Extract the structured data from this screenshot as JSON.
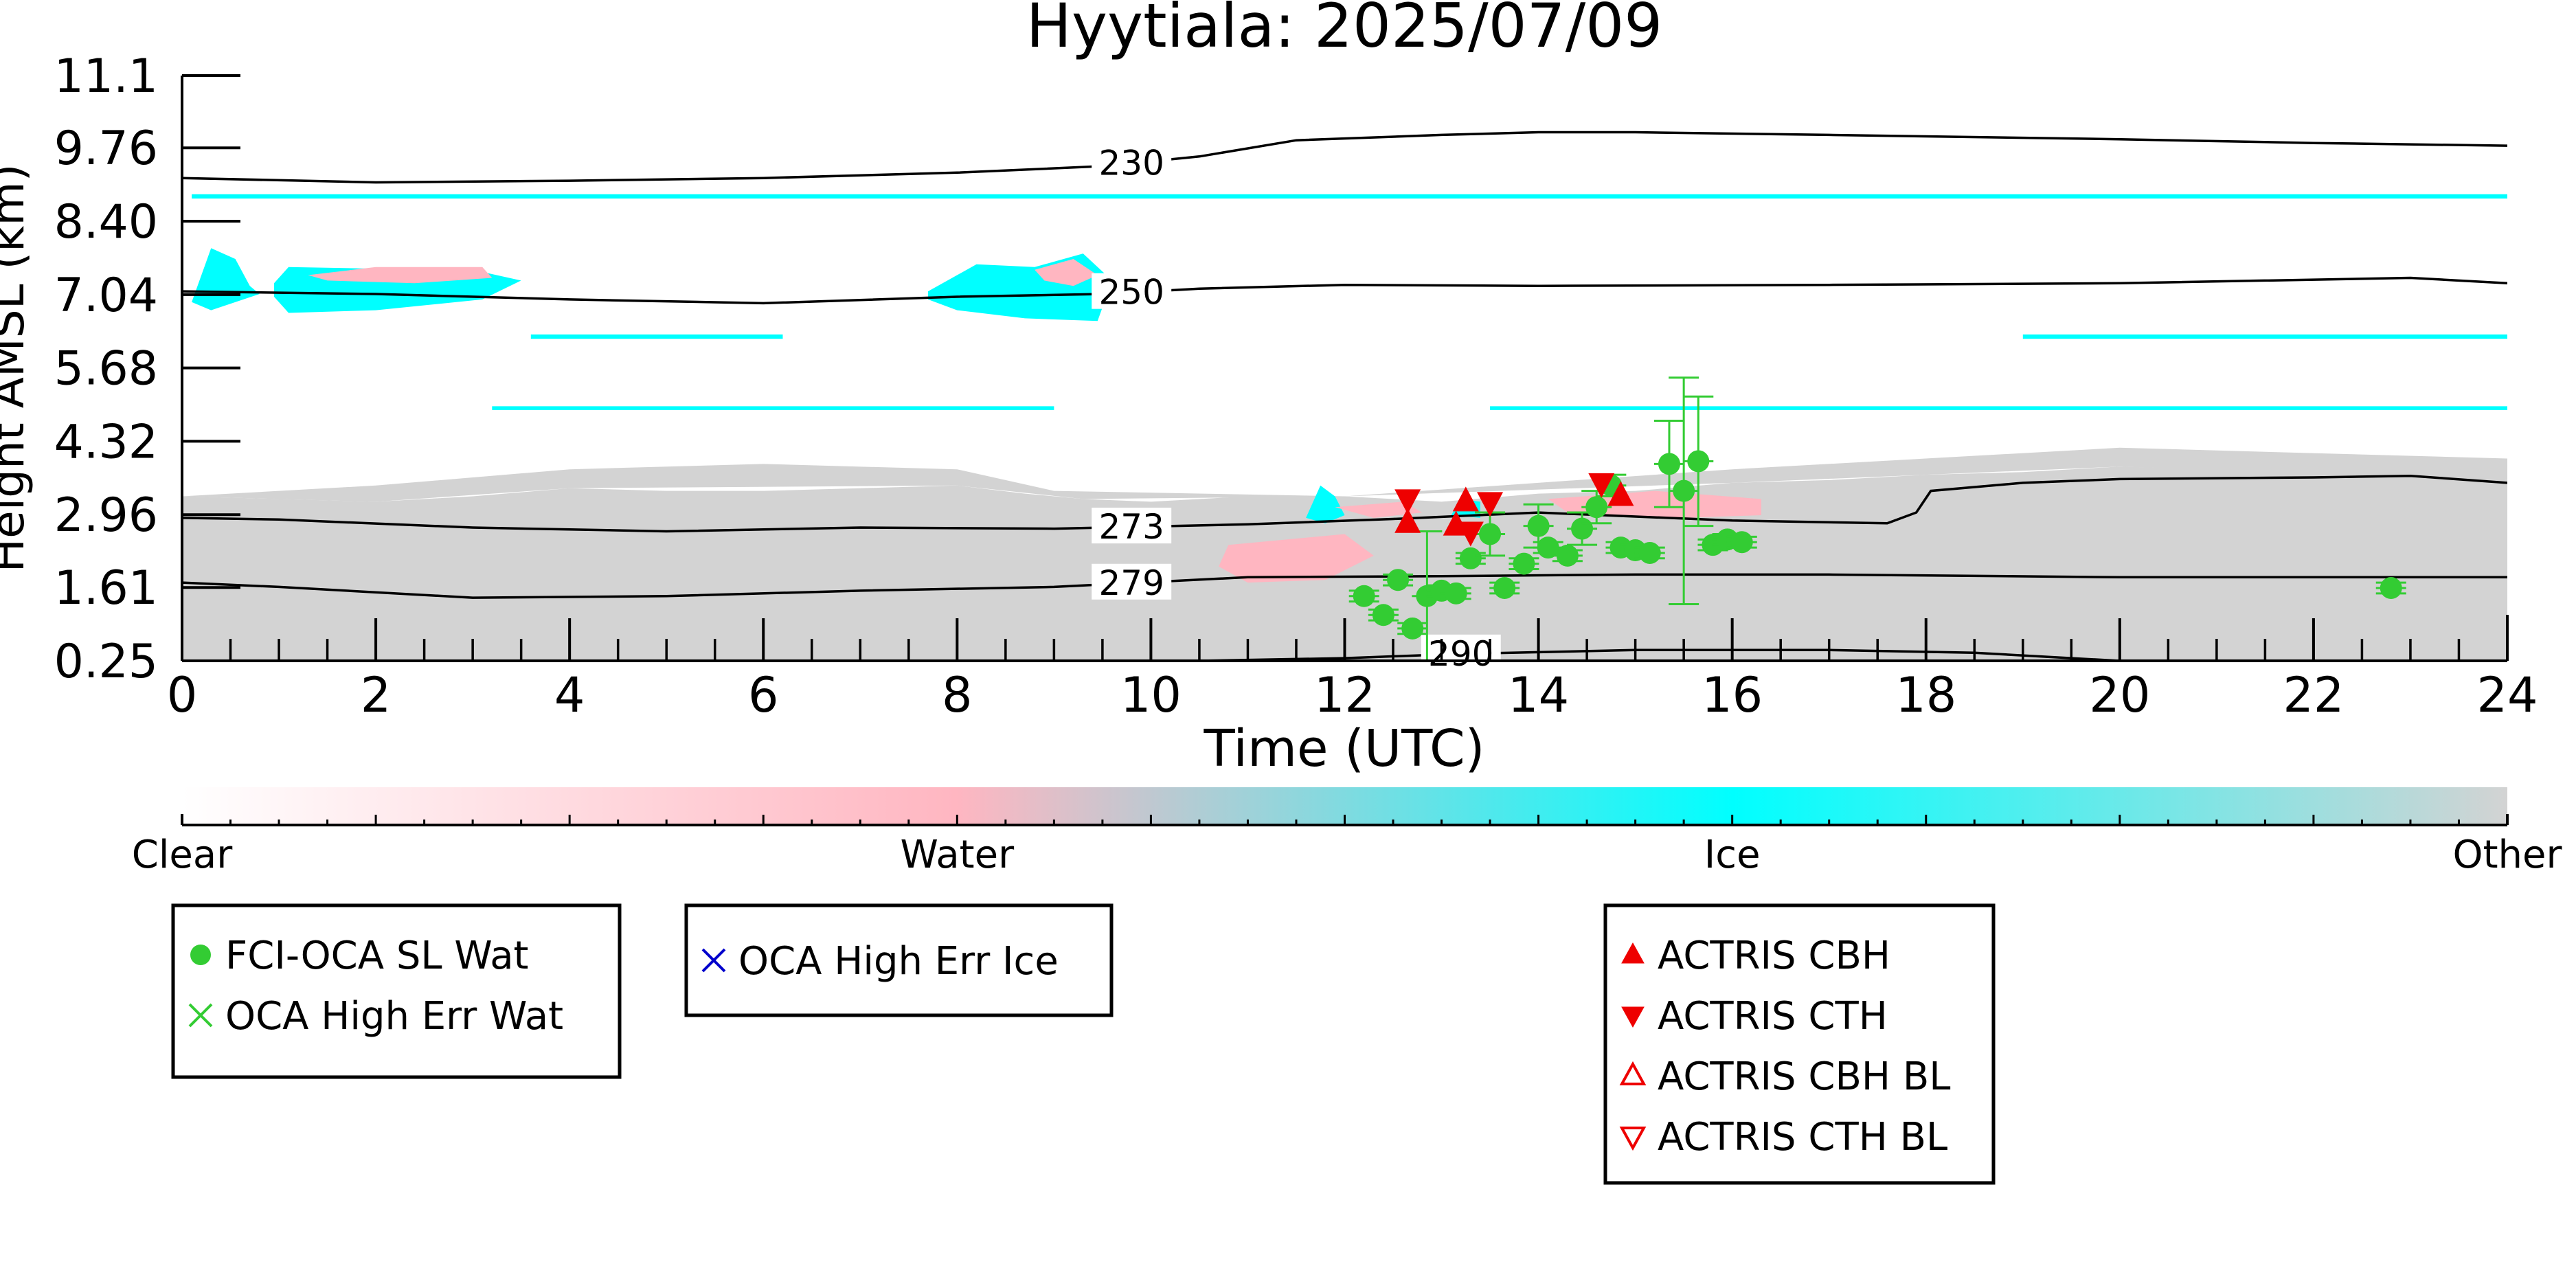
{
  "chart_data": {
    "type": "scatter",
    "title": "Hyytiala: 2025/07/09",
    "xlabel": "Time (UTC)",
    "ylabel": "Height AMSL (km)",
    "xlim": [
      0,
      24
    ],
    "ylim": [
      0.25,
      11.1
    ],
    "x_ticks": [
      "0",
      "2",
      "4",
      "6",
      "8",
      "10",
      "12",
      "14",
      "16",
      "18",
      "20",
      "22",
      "24"
    ],
    "y_ticks": [
      "0.25",
      "1.61",
      "2.96",
      "4.32",
      "5.68",
      "7.04",
      "8.40",
      "9.76",
      "11.1"
    ],
    "colorbar": {
      "labels": [
        "Clear",
        "Water",
        "Ice",
        "Other"
      ],
      "colors": [
        "#ffffff",
        "#ffb6c1",
        "#00ffff",
        "#d3d3d3"
      ]
    },
    "colors": {
      "oca_water": "#33cc33",
      "oca_ice": "#0000cc",
      "actris": "#ee0000",
      "contour": "#000000",
      "cloud_other": "#d3d3d3",
      "cloud_water": "#ffb6c1",
      "cloud_ice": "#00ffff"
    },
    "legends": [
      {
        "position": "lower-left",
        "entries": [
          {
            "label": "FCI-OCA SL Wat",
            "marker": "circle",
            "color": "#33cc33"
          },
          {
            "label": "OCA High Err Wat",
            "marker": "x",
            "color": "#33cc33"
          }
        ]
      },
      {
        "position": "lower-center-left",
        "entries": [
          {
            "label": "OCA High Err Ice",
            "marker": "x",
            "color": "#0000cc"
          }
        ]
      },
      {
        "position": "lower-right",
        "entries": [
          {
            "label": "ACTRIS CBH",
            "marker": "triangle-up",
            "color": "#ee0000"
          },
          {
            "label": "ACTRIS CTH",
            "marker": "triangle-down",
            "color": "#ee0000"
          },
          {
            "label": "ACTRIS CBH BL",
            "marker": "triangle-up-open",
            "color": "#ee0000"
          },
          {
            "label": "ACTRIS CTH BL",
            "marker": "triangle-down-open",
            "color": "#ee0000"
          }
        ]
      }
    ],
    "contours": [
      {
        "label": "230",
        "label_x": 9.8,
        "points": [
          [
            0,
            9.2
          ],
          [
            2,
            9.12
          ],
          [
            4,
            9.15
          ],
          [
            6,
            9.2
          ],
          [
            8,
            9.3
          ],
          [
            9.5,
            9.42
          ],
          [
            10.5,
            9.6
          ],
          [
            11.5,
            9.9
          ],
          [
            13,
            10.0
          ],
          [
            14,
            10.05
          ],
          [
            15,
            10.05
          ],
          [
            17,
            10.0
          ],
          [
            20,
            9.92
          ],
          [
            22,
            9.85
          ],
          [
            24,
            9.8
          ]
        ]
      },
      {
        "label": "250",
        "label_x": 9.8,
        "points": [
          [
            0,
            7.1
          ],
          [
            2,
            7.05
          ],
          [
            4,
            6.95
          ],
          [
            6,
            6.88
          ],
          [
            8,
            7.0
          ],
          [
            9.5,
            7.05
          ],
          [
            10.5,
            7.15
          ],
          [
            12,
            7.22
          ],
          [
            14,
            7.2
          ],
          [
            17,
            7.22
          ],
          [
            20,
            7.25
          ],
          [
            23,
            7.35
          ],
          [
            24,
            7.25
          ]
        ]
      },
      {
        "label": "273",
        "label_x": 9.8,
        "points": [
          [
            0,
            2.9
          ],
          [
            1,
            2.87
          ],
          [
            3,
            2.72
          ],
          [
            5,
            2.65
          ],
          [
            7,
            2.72
          ],
          [
            9,
            2.7
          ],
          [
            11,
            2.78
          ],
          [
            12.5,
            2.88
          ],
          [
            14,
            3.0
          ],
          [
            16,
            2.85
          ],
          [
            17.6,
            2.8
          ],
          [
            17.9,
            3.0
          ],
          [
            18.05,
            3.4
          ],
          [
            19,
            3.55
          ],
          [
            20,
            3.62
          ],
          [
            22,
            3.65
          ],
          [
            23,
            3.68
          ],
          [
            24,
            3.55
          ]
        ]
      },
      {
        "label": "279",
        "label_x": 9.8,
        "points": [
          [
            0,
            1.7
          ],
          [
            1,
            1.62
          ],
          [
            3,
            1.42
          ],
          [
            5,
            1.45
          ],
          [
            7,
            1.55
          ],
          [
            9,
            1.62
          ],
          [
            11,
            1.8
          ],
          [
            13,
            1.82
          ],
          [
            15,
            1.85
          ],
          [
            17,
            1.85
          ],
          [
            20,
            1.8
          ],
          [
            22,
            1.8
          ],
          [
            24,
            1.8
          ]
        ]
      },
      {
        "label": "290",
        "label_x": 13.2,
        "points": [
          [
            10.5,
            0.25
          ],
          [
            12,
            0.3
          ],
          [
            13.2,
            0.38
          ],
          [
            15,
            0.45
          ],
          [
            17,
            0.45
          ],
          [
            18.5,
            0.4
          ],
          [
            19.5,
            0.3
          ],
          [
            20,
            0.25
          ]
        ]
      }
    ],
    "cloud_regions": [
      {
        "class": "other",
        "points": [
          [
            0,
            0.25
          ],
          [
            0,
            3.3
          ],
          [
            1,
            3.25
          ],
          [
            2,
            3.2
          ],
          [
            3,
            3.3
          ],
          [
            4,
            3.45
          ],
          [
            5,
            3.4
          ],
          [
            6,
            3.4
          ],
          [
            7,
            3.45
          ],
          [
            8,
            3.5
          ],
          [
            8.7,
            3.35
          ],
          [
            9.3,
            3.25
          ],
          [
            10,
            3.2
          ],
          [
            11,
            3.3
          ],
          [
            12,
            3.3
          ],
          [
            13,
            3.2
          ],
          [
            14,
            3.35
          ],
          [
            15,
            3.4
          ],
          [
            16,
            3.55
          ],
          [
            17,
            3.6
          ],
          [
            18,
            3.7
          ],
          [
            19,
            3.75
          ],
          [
            20,
            3.85
          ],
          [
            21,
            3.8
          ],
          [
            22,
            3.75
          ],
          [
            23,
            3.75
          ],
          [
            24,
            3.6
          ],
          [
            24,
            0.25
          ]
        ]
      },
      {
        "class": "other",
        "points": [
          [
            0,
            3.3
          ],
          [
            2,
            3.5
          ],
          [
            4,
            3.8
          ],
          [
            6,
            3.9
          ],
          [
            8,
            3.8
          ],
          [
            9,
            3.4
          ],
          [
            12,
            3.3
          ],
          [
            16,
            3.8
          ],
          [
            20,
            4.2
          ],
          [
            24,
            4.0
          ],
          [
            24,
            3.6
          ],
          [
            20,
            3.85
          ],
          [
            16,
            3.55
          ],
          [
            12,
            3.3
          ],
          [
            9.3,
            3.25
          ],
          [
            8,
            3.5
          ],
          [
            4,
            3.45
          ],
          [
            2,
            3.2
          ],
          [
            0,
            3.3
          ]
        ]
      },
      {
        "class": "ice",
        "points": [
          [
            0.1,
            6.9
          ],
          [
            0.3,
            7.9
          ],
          [
            0.55,
            7.7
          ],
          [
            0.7,
            7.2
          ],
          [
            0.8,
            7.05
          ],
          [
            0.3,
            6.75
          ],
          [
            0.1,
            6.9
          ]
        ]
      },
      {
        "class": "ice",
        "points": [
          [
            0.95,
            7.25
          ],
          [
            1.1,
            7.55
          ],
          [
            2,
            7.52
          ],
          [
            3,
            7.5
          ],
          [
            3.5,
            7.3
          ],
          [
            3.1,
            6.95
          ],
          [
            2,
            6.75
          ],
          [
            1.1,
            6.7
          ],
          [
            0.95,
            7.0
          ]
        ]
      },
      {
        "class": "water",
        "points": [
          [
            1.3,
            7.4
          ],
          [
            2,
            7.55
          ],
          [
            3.1,
            7.55
          ],
          [
            3.2,
            7.35
          ],
          [
            2.4,
            7.25
          ],
          [
            1.5,
            7.3
          ]
        ]
      },
      {
        "class": "ice",
        "points": [
          [
            7.7,
            7.1
          ],
          [
            8.2,
            7.6
          ],
          [
            8.8,
            7.55
          ],
          [
            9.3,
            7.8
          ],
          [
            9.6,
            7.3
          ],
          [
            9.45,
            6.55
          ],
          [
            8.7,
            6.6
          ],
          [
            8,
            6.75
          ],
          [
            7.7,
            6.95
          ]
        ]
      },
      {
        "class": "water",
        "points": [
          [
            8.8,
            7.5
          ],
          [
            9.2,
            7.7
          ],
          [
            9.45,
            7.4
          ],
          [
            9.2,
            7.2
          ],
          [
            8.9,
            7.3
          ]
        ]
      },
      {
        "class": "ice",
        "points": [
          [
            3.6,
            6.3
          ],
          [
            6.2,
            6.3
          ],
          [
            6.2,
            6.22
          ],
          [
            3.6,
            6.22
          ]
        ]
      },
      {
        "class": "ice",
        "points": [
          [
            19.0,
            6.3
          ],
          [
            24,
            6.3
          ],
          [
            24,
            6.22
          ],
          [
            19.0,
            6.22
          ]
        ]
      },
      {
        "class": "ice",
        "points": [
          [
            3.2,
            4.97
          ],
          [
            9,
            4.97
          ],
          [
            9,
            4.9
          ],
          [
            3.2,
            4.9
          ]
        ]
      },
      {
        "class": "ice",
        "points": [
          [
            13.5,
            4.97
          ],
          [
            24,
            4.97
          ],
          [
            24,
            4.9
          ],
          [
            13.5,
            4.9
          ]
        ]
      },
      {
        "class": "ice",
        "points": [
          [
            0.1,
            8.9
          ],
          [
            24,
            8.9
          ],
          [
            24,
            8.82
          ],
          [
            0.1,
            8.82
          ]
        ]
      },
      {
        "class": "water",
        "points": [
          [
            10.8,
            2.4
          ],
          [
            12,
            2.6
          ],
          [
            12.3,
            2.2
          ],
          [
            11.8,
            1.75
          ],
          [
            11,
            1.7
          ],
          [
            10.7,
            2.0
          ]
        ]
      },
      {
        "class": "ice",
        "points": [
          [
            11.6,
            2.9
          ],
          [
            11.75,
            3.5
          ],
          [
            11.9,
            3.3
          ],
          [
            12.0,
            2.95
          ],
          [
            11.8,
            2.8
          ]
        ]
      },
      {
        "class": "water",
        "points": [
          [
            11.9,
            3.1
          ],
          [
            12.6,
            3.2
          ],
          [
            12.8,
            3.0
          ],
          [
            12.3,
            2.9
          ]
        ]
      },
      {
        "class": "ice",
        "points": [
          [
            13.1,
            2.95
          ],
          [
            13.2,
            3.25
          ],
          [
            13.4,
            3.2
          ],
          [
            13.4,
            2.9
          ]
        ]
      },
      {
        "class": "water",
        "points": [
          [
            14.1,
            3.25
          ],
          [
            15.2,
            3.4
          ],
          [
            16.3,
            3.25
          ],
          [
            16.3,
            2.95
          ],
          [
            15.5,
            2.9
          ],
          [
            14.3,
            3.0
          ]
        ]
      }
    ],
    "series": [
      {
        "name": "FCI-OCA SL Wat",
        "marker": "circle",
        "x": [
          12.2,
          12.4,
          12.55,
          12.7,
          12.85,
          13.0,
          13.15,
          13.3,
          13.5,
          13.65,
          13.85,
          14.0,
          14.1,
          14.3,
          14.45,
          14.6,
          14.75,
          14.85,
          15.0,
          15.15,
          15.35,
          15.5,
          15.65,
          15.8,
          15.95,
          16.1,
          22.8
        ],
        "y": [
          1.45,
          1.1,
          1.75,
          0.85,
          1.45,
          1.55,
          1.5,
          2.15,
          2.6,
          1.6,
          2.05,
          2.75,
          2.35,
          2.2,
          2.7,
          3.1,
          3.5,
          2.35,
          2.3,
          2.25,
          3.9,
          3.4,
          3.95,
          2.4,
          2.5,
          2.45,
          1.6
        ],
        "y_err": [
          0.1,
          0.1,
          0.1,
          0.1,
          1.2,
          0.1,
          0.1,
          0.1,
          0.4,
          0.1,
          0.1,
          0.4,
          0.1,
          0.1,
          0.3,
          0.3,
          0.2,
          0.1,
          0.1,
          0.1,
          0.8,
          2.1,
          1.2,
          0.1,
          0.1,
          0.1,
          0.1
        ]
      },
      {
        "name": "ACTRIS CBH",
        "marker": "triangle-up",
        "x": [
          12.65,
          13.15,
          13.25,
          14.85
        ],
        "y": [
          2.8,
          2.75,
          3.2,
          3.3
        ]
      },
      {
        "name": "ACTRIS CTH",
        "marker": "triangle-down",
        "x": [
          12.65,
          13.3,
          13.5,
          14.65
        ],
        "y": [
          3.25,
          2.65,
          3.2,
          3.55
        ]
      }
    ]
  }
}
